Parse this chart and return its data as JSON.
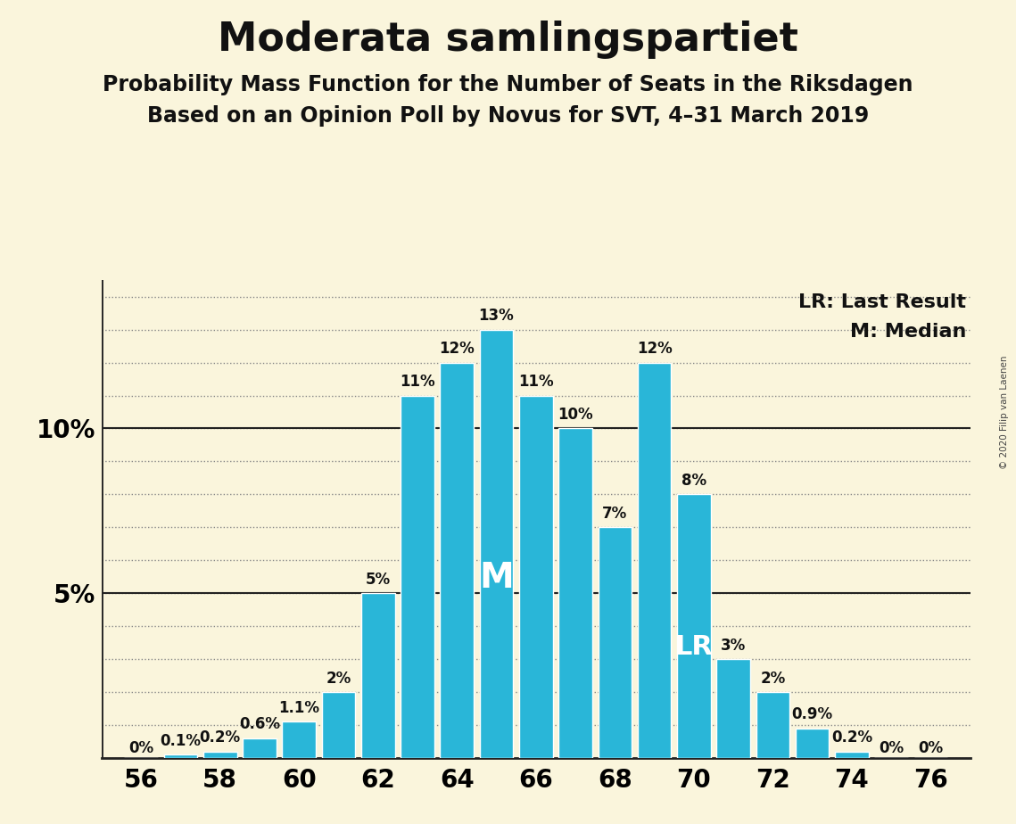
{
  "title": "Moderata samlingspartiet",
  "subtitle1": "Probability Mass Function for the Number of Seats in the Riksdagen",
  "subtitle2": "Based on an Opinion Poll by Novus for SVT, 4–31 March 2019",
  "copyright": "© 2020 Filip van Laenen",
  "background_color": "#FAF5DC",
  "bar_color": "#29B6D8",
  "bar_edge_color": "white",
  "seats": [
    56,
    57,
    58,
    59,
    60,
    61,
    62,
    63,
    64,
    65,
    66,
    67,
    68,
    69,
    70,
    71,
    72,
    73,
    74,
    75,
    76
  ],
  "probabilities": [
    0.0,
    0.1,
    0.2,
    0.6,
    1.1,
    2.0,
    5.0,
    11.0,
    12.0,
    13.0,
    11.0,
    10.0,
    7.0,
    12.0,
    8.0,
    3.0,
    2.0,
    0.9,
    0.2,
    0.0,
    0.0
  ],
  "labels": [
    "0%",
    "0.1%",
    "0.2%",
    "0.6%",
    "1.1%",
    "2%",
    "5%",
    "11%",
    "12%",
    "13%",
    "11%",
    "10%",
    "7%",
    "12%",
    "8%",
    "3%",
    "2%",
    "0.9%",
    "0.2%",
    "0%",
    "0%"
  ],
  "median_seat": 65,
  "lr_seat": 70,
  "median_label": "M",
  "lr_label": "LR",
  "legend_lr": "LR: Last Result",
  "legend_m": "M: Median",
  "ylim": [
    0,
    14.5
  ],
  "xlim": [
    55.0,
    77.0
  ],
  "xticks": [
    56,
    58,
    60,
    62,
    64,
    66,
    68,
    70,
    72,
    74,
    76
  ],
  "title_fontsize": 32,
  "subtitle_fontsize": 17,
  "bar_label_fontsize": 12,
  "axis_tick_fontsize": 20,
  "annotation_fontsize_m": 28,
  "annotation_fontsize_lr": 22,
  "legend_fontsize": 16,
  "grid_color": "#888888",
  "solid_line_color": "#222222",
  "text_color": "#111111"
}
